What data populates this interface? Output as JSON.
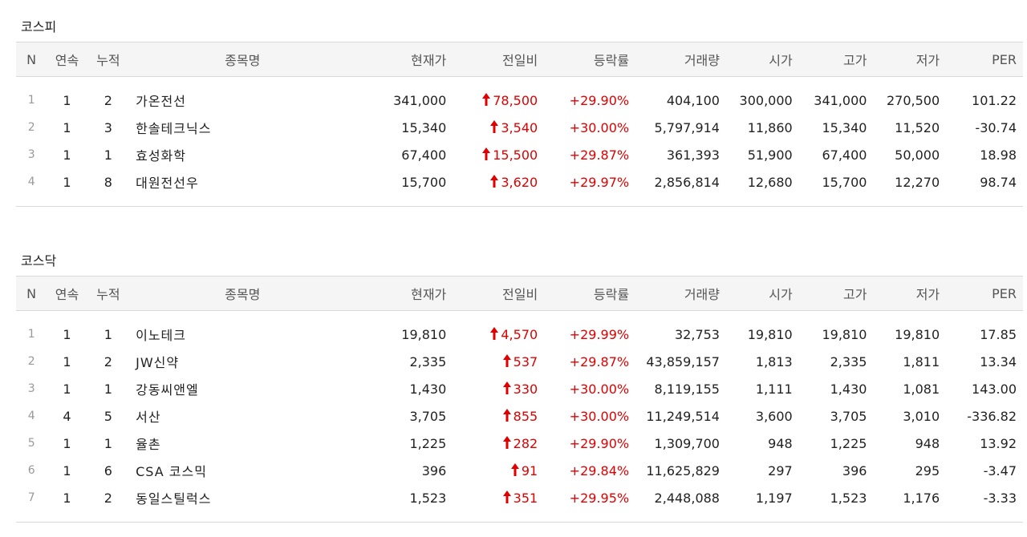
{
  "colors": {
    "up": "#e00000",
    "header_bg": "#f5f5f5",
    "border": "#d9d9d9"
  },
  "columns": [
    "N",
    "연속",
    "누적",
    "종목명",
    "현재가",
    "전일비",
    "등락률",
    "거래량",
    "시가",
    "고가",
    "저가",
    "PER"
  ],
  "sections": [
    {
      "title": "코스피",
      "rows": [
        {
          "n": "1",
          "streak": "1",
          "total": "2",
          "name": "가온전선",
          "price": "341,000",
          "change": "78,500",
          "rate": "+29.90%",
          "volume": "404,100",
          "open": "300,000",
          "high": "341,000",
          "low": "270,500",
          "per": "101.22"
        },
        {
          "n": "2",
          "streak": "1",
          "total": "3",
          "name": "한솔테크닉스",
          "price": "15,340",
          "change": "3,540",
          "rate": "+30.00%",
          "volume": "5,797,914",
          "open": "11,860",
          "high": "15,340",
          "low": "11,520",
          "per": "-30.74"
        },
        {
          "n": "3",
          "streak": "1",
          "total": "1",
          "name": "효성화학",
          "price": "67,400",
          "change": "15,500",
          "rate": "+29.87%",
          "volume": "361,393",
          "open": "51,900",
          "high": "67,400",
          "low": "50,000",
          "per": "18.98"
        },
        {
          "n": "4",
          "streak": "1",
          "total": "8",
          "name": "대원전선우",
          "price": "15,700",
          "change": "3,620",
          "rate": "+29.97%",
          "volume": "2,856,814",
          "open": "12,680",
          "high": "15,700",
          "low": "12,270",
          "per": "98.74"
        }
      ]
    },
    {
      "title": "코스닥",
      "rows": [
        {
          "n": "1",
          "streak": "1",
          "total": "1",
          "name": "이노테크",
          "price": "19,810",
          "change": "4,570",
          "rate": "+29.99%",
          "volume": "32,753",
          "open": "19,810",
          "high": "19,810",
          "low": "19,810",
          "per": "17.85"
        },
        {
          "n": "2",
          "streak": "1",
          "total": "2",
          "name": "JW신약",
          "price": "2,335",
          "change": "537",
          "rate": "+29.87%",
          "volume": "43,859,157",
          "open": "1,813",
          "high": "2,335",
          "low": "1,811",
          "per": "13.34"
        },
        {
          "n": "3",
          "streak": "1",
          "total": "1",
          "name": "강동씨앤엘",
          "price": "1,430",
          "change": "330",
          "rate": "+30.00%",
          "volume": "8,119,155",
          "open": "1,111",
          "high": "1,430",
          "low": "1,081",
          "per": "143.00"
        },
        {
          "n": "4",
          "streak": "4",
          "total": "5",
          "name": "서산",
          "price": "3,705",
          "change": "855",
          "rate": "+30.00%",
          "volume": "11,249,514",
          "open": "3,600",
          "high": "3,705",
          "low": "3,010",
          "per": "-336.82"
        },
        {
          "n": "5",
          "streak": "1",
          "total": "1",
          "name": "율촌",
          "price": "1,225",
          "change": "282",
          "rate": "+29.90%",
          "volume": "1,309,700",
          "open": "948",
          "high": "1,225",
          "low": "948",
          "per": "13.92"
        },
        {
          "n": "6",
          "streak": "1",
          "total": "6",
          "name": "CSA 코스믹",
          "price": "396",
          "change": "91",
          "rate": "+29.84%",
          "volume": "11,625,829",
          "open": "297",
          "high": "396",
          "low": "295",
          "per": "-3.47"
        },
        {
          "n": "7",
          "streak": "1",
          "total": "2",
          "name": "동일스틸럭스",
          "price": "1,523",
          "change": "351",
          "rate": "+29.95%",
          "volume": "2,448,088",
          "open": "1,197",
          "high": "1,523",
          "low": "1,176",
          "per": "-3.33"
        }
      ]
    }
  ]
}
